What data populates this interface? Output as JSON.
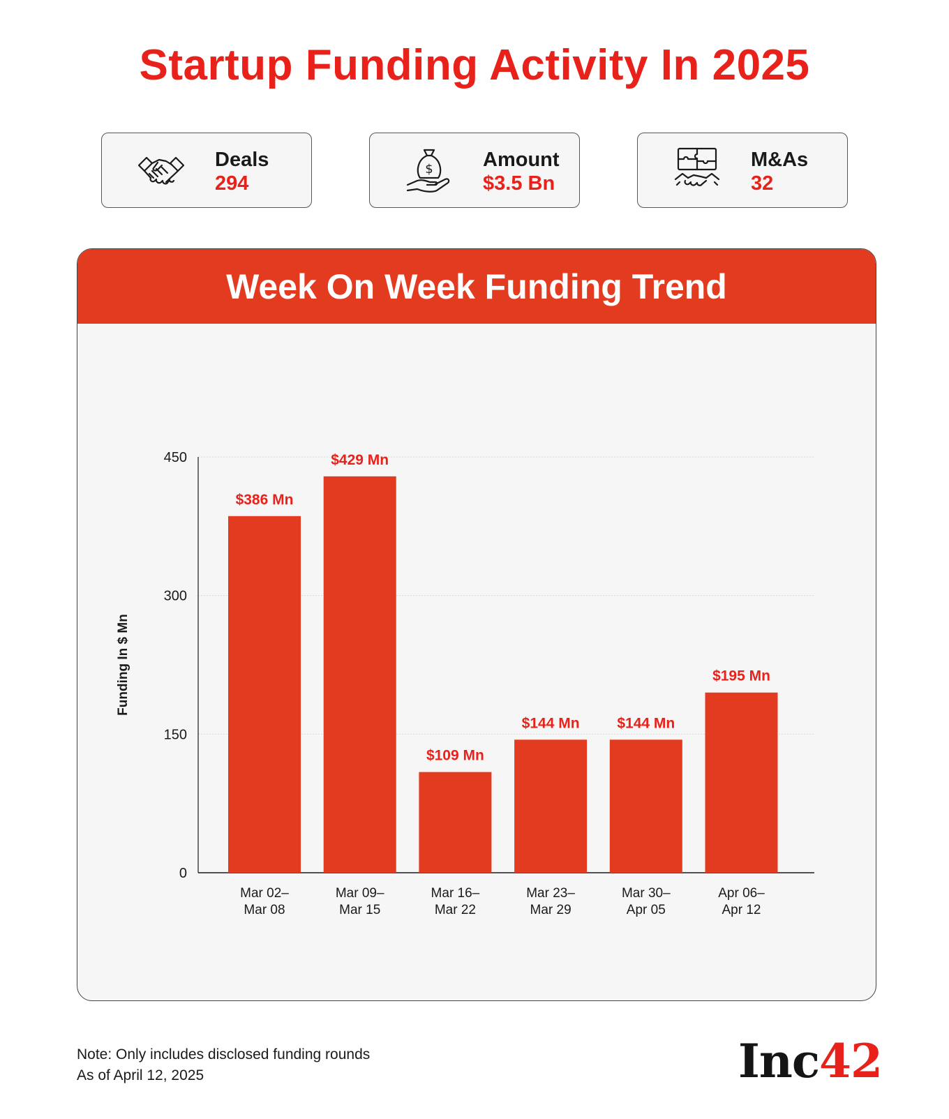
{
  "title": "Startup Funding Activity In 2025",
  "stats": {
    "deals": {
      "label": "Deals",
      "value": "294",
      "icon": "handshake-icon"
    },
    "amount": {
      "label": "Amount",
      "value": "$3.5 Bn",
      "icon": "money-bag-hand-icon"
    },
    "mas": {
      "label": "M&As",
      "value": "32",
      "icon": "puzzle-handshake-icon"
    }
  },
  "panel": {
    "title": "Week On Week Funding Trend"
  },
  "chart_data": {
    "type": "bar",
    "categories": [
      [
        "Mar 02–",
        "Mar 08"
      ],
      [
        "Mar 09–",
        "Mar 15"
      ],
      [
        "Mar 16–",
        "Mar 22"
      ],
      [
        "Mar 23–",
        "Mar 29"
      ],
      [
        "Mar 30–",
        "Apr 05"
      ],
      [
        "Apr 06–",
        "Apr 12"
      ]
    ],
    "values": [
      386,
      429,
      109,
      144,
      144,
      195
    ],
    "data_labels": [
      "$386 Mn",
      "$429 Mn",
      "$109 Mn",
      "$144 Mn",
      "$144 Mn",
      "$195 Mn"
    ],
    "ylabel": "Funding In $ Mn",
    "xlabel": "",
    "ylim": [
      0,
      450
    ],
    "yticks": [
      0,
      150,
      300,
      450
    ],
    "grid": true,
    "bar_color": "#e23b20",
    "label_color": "#e8221a"
  },
  "footer": {
    "note_line1": "Note: Only includes disclosed funding rounds",
    "note_line2": "As of April 12, 2025",
    "logo_text": "Inc",
    "logo_num": "42"
  },
  "colors": {
    "accent": "#e8221a",
    "header": "#e23b20",
    "panel_bg": "#f6f6f6"
  }
}
